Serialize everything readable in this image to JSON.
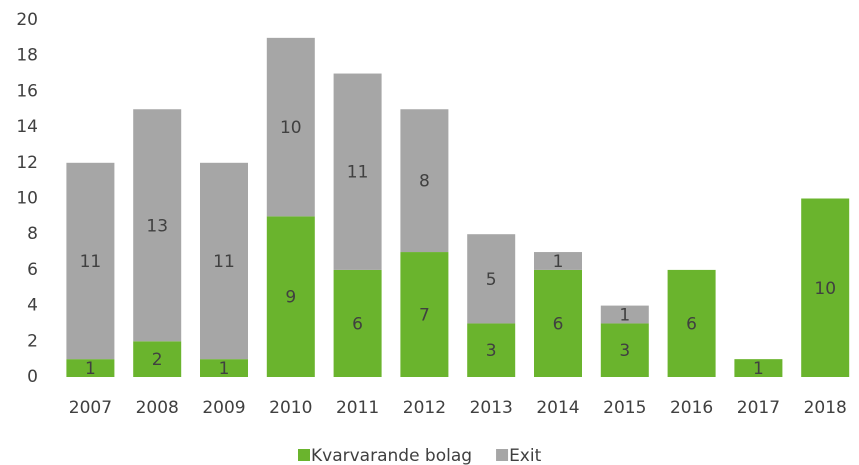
{
  "chart_data": {
    "type": "stacked_bar",
    "categories": [
      "2007",
      "2008",
      "2009",
      "2010",
      "2011",
      "2012",
      "2013",
      "2014",
      "2015",
      "2016",
      "2017",
      "2018"
    ],
    "series": [
      {
        "name": "Kvarvarande bolag",
        "color": "#6ab42d",
        "values": [
          1,
          2,
          1,
          9,
          6,
          7,
          3,
          6,
          3,
          6,
          1,
          10
        ]
      },
      {
        "name": "Exit",
        "color": "#a6a6a6",
        "values": [
          11,
          13,
          11,
          10,
          11,
          8,
          5,
          1,
          1,
          null,
          null,
          null
        ]
      }
    ],
    "ylim": [
      0,
      20
    ],
    "yticks": [
      0,
      2,
      4,
      6,
      8,
      10,
      12,
      14,
      16,
      18,
      20
    ],
    "grid": false,
    "legend": "bottom"
  }
}
